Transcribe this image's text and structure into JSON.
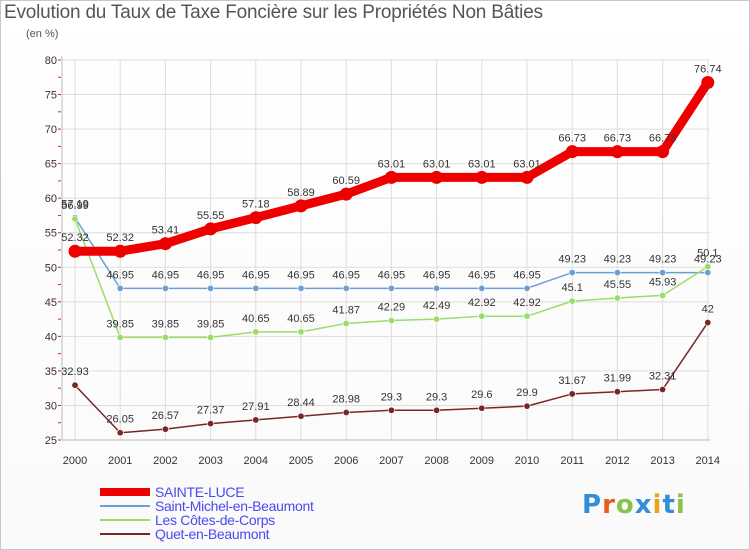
{
  "header": {
    "title": "Evolution du Taux de Taxe Foncière sur les Propriétés Non Bâties",
    "subtitle": "(en %)"
  },
  "logo": {
    "text": "Proxiti",
    "colors": [
      "#2f8fd8",
      "#e85c1c",
      "#8bc34a",
      "#2f8fd8",
      "#e8a41c",
      "#2f8fd8",
      "#8bc34a"
    ]
  },
  "chart_data": {
    "type": "line",
    "title": "Evolution du Taux de Taxe Foncière sur les Propriétés Non Bâties",
    "ylabel": "(en %)",
    "xlabel": "",
    "ylim": [
      25,
      80
    ],
    "yticks": [
      25,
      30,
      35,
      40,
      45,
      50,
      55,
      60,
      65,
      70,
      75,
      80
    ],
    "categories": [
      "2000",
      "2001",
      "2002",
      "2003",
      "2004",
      "2005",
      "2006",
      "2007",
      "2008",
      "2009",
      "2010",
      "2011",
      "2012",
      "2013",
      "2014"
    ],
    "grid": true,
    "legend": "bottom-left",
    "series": [
      {
        "name": "SAINTE-LUCE",
        "color": "#ee0000",
        "emphasis": "thick",
        "values": [
          52.32,
          52.32,
          53.41,
          55.55,
          57.18,
          58.89,
          60.59,
          63.01,
          63.01,
          63.01,
          63.01,
          66.73,
          66.73,
          66.73,
          76.74
        ],
        "labels": [
          "52.32",
          "52.32",
          "53.41",
          "55.55",
          "57.18",
          "58.89",
          "60.59",
          "63.01",
          "63.01",
          "63.01",
          "63.01",
          "66.73",
          "66.73",
          "66.73",
          "76.74"
        ]
      },
      {
        "name": "Saint-Michel-en-Beaumont",
        "color": "#6a9fd4",
        "emphasis": "thin",
        "values": [
          57.19,
          46.95,
          46.95,
          46.95,
          46.95,
          46.95,
          46.95,
          46.95,
          46.95,
          46.95,
          46.95,
          49.23,
          49.23,
          49.23,
          49.23
        ],
        "labels": [
          "57.19",
          "46.95",
          "46.95",
          "46.95",
          "46.95",
          "46.95",
          "46.95",
          "46.95",
          "46.95",
          "46.95",
          "46.95",
          "49.23",
          "49.23",
          "49.23",
          "49.23"
        ]
      },
      {
        "name": "Les Côtes-de-Corps",
        "color": "#99dd66",
        "emphasis": "thin",
        "values": [
          56.99,
          39.85,
          39.85,
          39.85,
          40.65,
          40.65,
          41.87,
          42.29,
          42.49,
          42.92,
          42.92,
          45.1,
          45.55,
          45.93,
          50.1
        ],
        "labels": [
          "56.99",
          "39.85",
          "39.85",
          "39.85",
          "40.65",
          "40.65",
          "41.87",
          "42.29",
          "42.49",
          "42.92",
          "42.92",
          "45.1",
          "45.55",
          "45.93",
          "50.1"
        ]
      },
      {
        "name": "Quet-en-Beaumont",
        "color": "#7a2626",
        "emphasis": "thin",
        "values": [
          32.93,
          26.05,
          26.57,
          27.37,
          27.91,
          28.44,
          28.98,
          29.3,
          29.3,
          29.6,
          29.9,
          31.67,
          31.99,
          32.31,
          42
        ],
        "labels": [
          "32.93",
          "26.05",
          "26.57",
          "27.37",
          "27.91",
          "28.44",
          "28.98",
          "29.3",
          "29.3",
          "29.6",
          "29.9",
          "31.67",
          "31.99",
          "32.31",
          "42"
        ]
      }
    ]
  }
}
